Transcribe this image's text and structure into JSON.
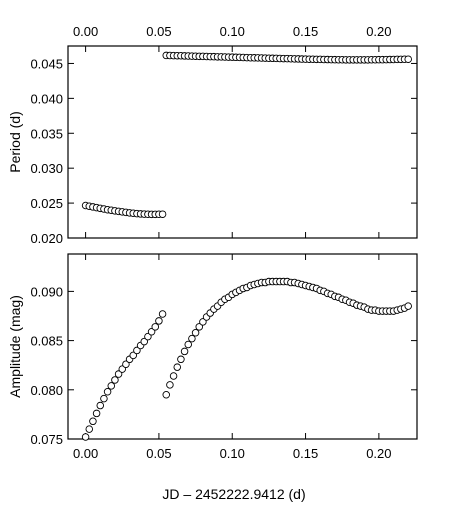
{
  "chart_data": [
    {
      "type": "scatter",
      "ylabel": "Period (d)",
      "xlim": [
        -0.012,
        0.226
      ],
      "ylim": [
        0.02,
        0.0475
      ],
      "xticks": [
        0.0,
        0.05,
        0.1,
        0.15,
        0.2
      ],
      "xtick_labels_top": [
        "0.00",
        "0.05",
        "0.10",
        "0.15",
        "0.20"
      ],
      "yticks": [
        0.02,
        0.025,
        0.03,
        0.035,
        0.04,
        0.045
      ],
      "ytick_labels": [
        "0.020",
        "0.025",
        "0.030",
        "0.035",
        "0.040",
        "0.045"
      ],
      "series": [
        {
          "segment": "early",
          "x": [
            0.0,
            0.0025,
            0.005,
            0.0075,
            0.01,
            0.0125,
            0.015,
            0.0175,
            0.02,
            0.0225,
            0.025,
            0.0275,
            0.03,
            0.0325,
            0.035,
            0.0375,
            0.04,
            0.0425,
            0.045,
            0.0475,
            0.05,
            0.0525
          ],
          "y": [
            0.02465,
            0.02455,
            0.02445,
            0.02435,
            0.02425,
            0.02415,
            0.02405,
            0.02397,
            0.02389,
            0.02381,
            0.02374,
            0.02367,
            0.0236,
            0.02354,
            0.02349,
            0.02345,
            0.02342,
            0.0234,
            0.02339,
            0.02339,
            0.0234,
            0.02341
          ]
        },
        {
          "segment": "late",
          "x": [
            0.055,
            0.0575,
            0.06,
            0.0625,
            0.065,
            0.0675,
            0.07,
            0.0725,
            0.075,
            0.0775,
            0.08,
            0.0825,
            0.085,
            0.0875,
            0.09,
            0.0925,
            0.095,
            0.0975,
            0.1,
            0.1025,
            0.105,
            0.1075,
            0.11,
            0.1125,
            0.115,
            0.1175,
            0.12,
            0.1225,
            0.125,
            0.1275,
            0.13,
            0.1325,
            0.135,
            0.1375,
            0.14,
            0.1425,
            0.145,
            0.1475,
            0.15,
            0.1525,
            0.155,
            0.1575,
            0.16,
            0.1625,
            0.165,
            0.1675,
            0.17,
            0.1725,
            0.175,
            0.1775,
            0.18,
            0.1825,
            0.185,
            0.1875,
            0.19,
            0.1925,
            0.195,
            0.1975,
            0.2,
            0.2025,
            0.205,
            0.2075,
            0.21,
            0.2125,
            0.215,
            0.2175,
            0.22
          ],
          "y": [
            0.04615,
            0.04614,
            0.04612,
            0.04611,
            0.0461,
            0.04608,
            0.04607,
            0.04605,
            0.04604,
            0.04602,
            0.04601,
            0.046,
            0.04598,
            0.04597,
            0.04595,
            0.04594,
            0.04592,
            0.04591,
            0.0459,
            0.04588,
            0.04587,
            0.04585,
            0.04584,
            0.04582,
            0.04581,
            0.0458,
            0.04578,
            0.04577,
            0.04575,
            0.04574,
            0.04573,
            0.04571,
            0.0457,
            0.04569,
            0.04567,
            0.04566,
            0.04565,
            0.04563,
            0.04562,
            0.04561,
            0.0456,
            0.04559,
            0.04558,
            0.04557,
            0.04556,
            0.04555,
            0.04554,
            0.04553,
            0.04553,
            0.04552,
            0.04552,
            0.04552,
            0.04552,
            0.04552,
            0.04552,
            0.04552,
            0.04553,
            0.04553,
            0.04554,
            0.04554,
            0.04555,
            0.04556,
            0.04557,
            0.04558,
            0.04559,
            0.0456,
            0.04561
          ]
        }
      ]
    },
    {
      "type": "scatter",
      "xlabel": "JD – 2452222.9412 (d)",
      "ylabel": "Amplitude (mag)",
      "xlim": [
        -0.012,
        0.226
      ],
      "ylim": [
        0.075,
        0.0938
      ],
      "xticks": [
        0.0,
        0.05,
        0.1,
        0.15,
        0.2
      ],
      "xtick_labels": [
        "0.00",
        "0.05",
        "0.10",
        "0.15",
        "0.20"
      ],
      "yticks": [
        0.075,
        0.08,
        0.085,
        0.09
      ],
      "ytick_labels": [
        "0.075",
        "0.080",
        "0.085",
        "0.090"
      ],
      "series": [
        {
          "segment": "early",
          "x": [
            0.0,
            0.0025,
            0.005,
            0.0075,
            0.01,
            0.0125,
            0.015,
            0.0175,
            0.02,
            0.0225,
            0.025,
            0.0275,
            0.03,
            0.0325,
            0.035,
            0.0375,
            0.04,
            0.0425,
            0.045,
            0.0475,
            0.05,
            0.0525
          ],
          "y": [
            0.0752,
            0.076,
            0.0768,
            0.0776,
            0.0784,
            0.0791,
            0.0798,
            0.0804,
            0.081,
            0.0816,
            0.0821,
            0.0826,
            0.0831,
            0.0835,
            0.084,
            0.0845,
            0.0849,
            0.0854,
            0.0859,
            0.0864,
            0.087,
            0.0877
          ]
        },
        {
          "segment": "late",
          "x": [
            0.055,
            0.0575,
            0.06,
            0.0625,
            0.065,
            0.0675,
            0.07,
            0.0725,
            0.075,
            0.0775,
            0.08,
            0.0825,
            0.085,
            0.0875,
            0.09,
            0.0925,
            0.095,
            0.0975,
            0.1,
            0.1025,
            0.105,
            0.1075,
            0.11,
            0.1125,
            0.115,
            0.1175,
            0.12,
            0.1225,
            0.125,
            0.1275,
            0.13,
            0.1325,
            0.135,
            0.1375,
            0.14,
            0.1425,
            0.145,
            0.1475,
            0.15,
            0.1525,
            0.155,
            0.1575,
            0.16,
            0.1625,
            0.165,
            0.1675,
            0.17,
            0.1725,
            0.175,
            0.1775,
            0.18,
            0.1825,
            0.185,
            0.1875,
            0.19,
            0.1925,
            0.195,
            0.1975,
            0.2,
            0.2025,
            0.205,
            0.2075,
            0.21,
            0.2125,
            0.215,
            0.2175,
            0.22
          ],
          "y": [
            0.0795,
            0.0805,
            0.0814,
            0.0823,
            0.0831,
            0.0839,
            0.0846,
            0.0852,
            0.0858,
            0.0864,
            0.0869,
            0.0874,
            0.0878,
            0.0882,
            0.0885,
            0.0889,
            0.0892,
            0.0894,
            0.0897,
            0.0899,
            0.0901,
            0.0903,
            0.0904,
            0.0906,
            0.0907,
            0.0908,
            0.0909,
            0.0909,
            0.091,
            0.091,
            0.091,
            0.091,
            0.091,
            0.091,
            0.0909,
            0.0909,
            0.0908,
            0.0907,
            0.0906,
            0.0905,
            0.0904,
            0.0903,
            0.0901,
            0.09,
            0.0898,
            0.0897,
            0.0895,
            0.0894,
            0.0892,
            0.0891,
            0.0889,
            0.0888,
            0.0886,
            0.0885,
            0.0884,
            0.0882,
            0.0881,
            0.0881,
            0.088,
            0.088,
            0.088,
            0.088,
            0.088,
            0.0881,
            0.0882,
            0.0883,
            0.0885
          ]
        }
      ]
    }
  ]
}
